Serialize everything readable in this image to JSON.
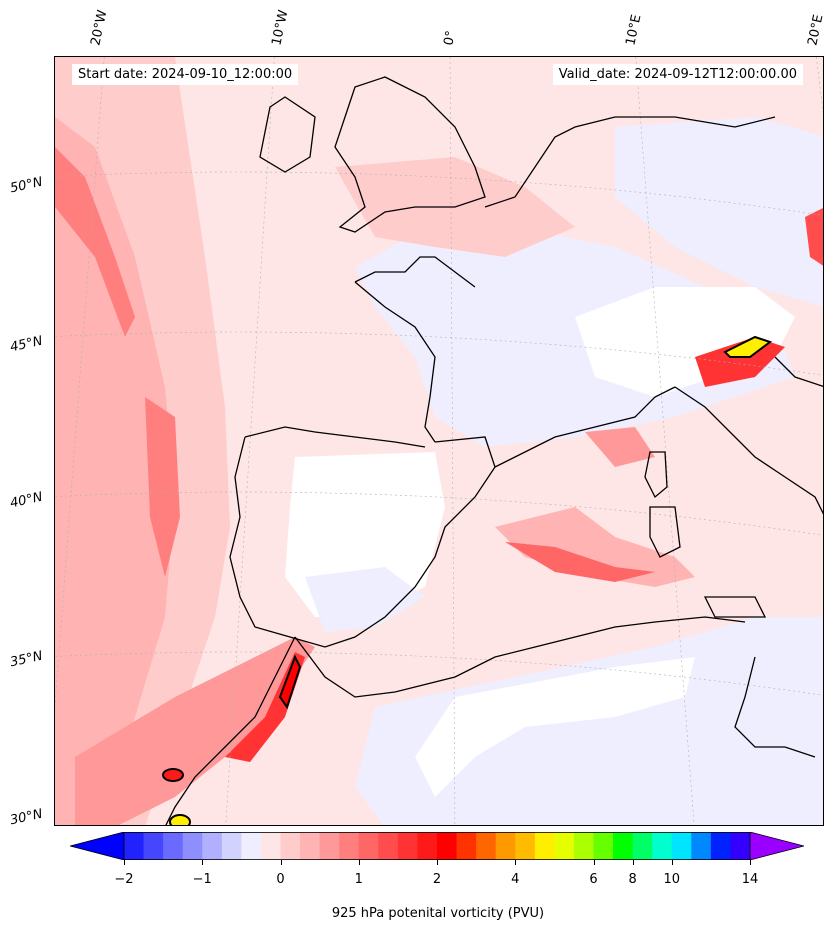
{
  "header": {
    "start_date": "Start date: 2024-09-10_12:00:00",
    "valid_date": "Valid_date: 2024-09-12T12:00:00.00"
  },
  "longitude_labels": [
    "20°W",
    "10°W",
    "0°",
    "10°E",
    "20°E"
  ],
  "latitude_labels": [
    "50°N",
    "45°N",
    "40°N",
    "35°N",
    "30°N"
  ],
  "colorbar": {
    "label": "925 hPa potenital vorticity (PVU)",
    "tick_labels": [
      "−2",
      "−1",
      "0",
      "1",
      "2",
      "4",
      "6",
      "8",
      "10",
      "14"
    ],
    "levels": [
      -2,
      -1.75,
      -1.5,
      -1.25,
      -1,
      -0.75,
      -0.5,
      -0.25,
      0,
      0.25,
      0.5,
      0.75,
      1,
      1.25,
      1.5,
      1.75,
      2,
      2.5,
      3,
      3.5,
      4,
      4.5,
      5,
      5.5,
      6,
      7,
      8,
      9,
      10,
      11,
      12,
      13,
      14,
      16,
      18
    ],
    "colors": [
      "#0000ff",
      "#2222ff",
      "#4646ff",
      "#6a6aff",
      "#8e8eff",
      "#b0b0ff",
      "#d2d2ff",
      "#eeeeff",
      "#ffe6e6",
      "#ffcccc",
      "#ffb3b3",
      "#ff9999",
      "#ff7f7f",
      "#ff6666",
      "#ff4c4c",
      "#ff3333",
      "#ff1a1a",
      "#ff0000",
      "#ff3300",
      "#ff6600",
      "#ff9900",
      "#ffbb00",
      "#ffee00",
      "#e6ff00",
      "#aaff00",
      "#66ff00",
      "#00ff00",
      "#00ff66",
      "#00ffcc",
      "#00e5ff",
      "#0088ff",
      "#0022ff",
      "#3300ff",
      "#9900ff"
    ],
    "extend": "both"
  }
}
